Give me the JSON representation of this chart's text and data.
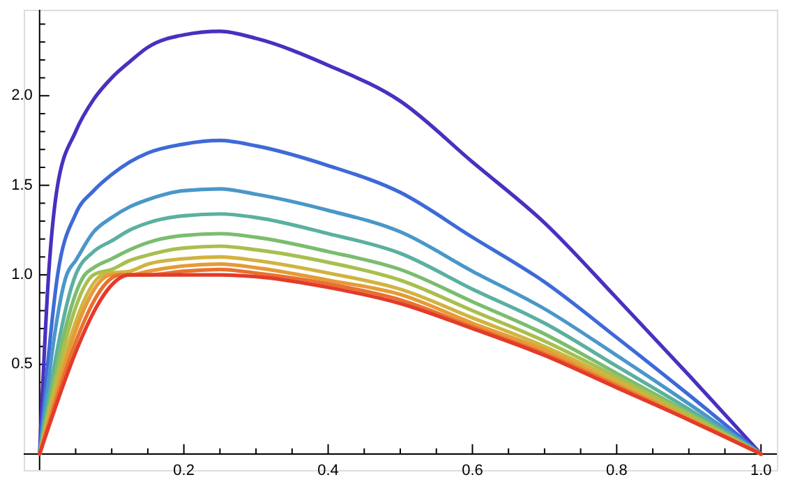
{
  "chart_data": {
    "type": "line",
    "xlim": [
      -0.022,
      1.022
    ],
    "ylim": [
      -0.09,
      2.48
    ],
    "xticks": [
      {
        "value": 0.05,
        "label": null
      },
      {
        "value": 0.1,
        "label": null
      },
      {
        "value": 0.15,
        "label": null
      },
      {
        "value": 0.2,
        "label": "0.2"
      },
      {
        "value": 0.25,
        "label": null
      },
      {
        "value": 0.3,
        "label": null
      },
      {
        "value": 0.35,
        "label": null
      },
      {
        "value": 0.4,
        "label": "0.4"
      },
      {
        "value": 0.45,
        "label": null
      },
      {
        "value": 0.5,
        "label": null
      },
      {
        "value": 0.55,
        "label": null
      },
      {
        "value": 0.6,
        "label": "0.6"
      },
      {
        "value": 0.65,
        "label": null
      },
      {
        "value": 0.7,
        "label": null
      },
      {
        "value": 0.75,
        "label": null
      },
      {
        "value": 0.8,
        "label": "0.8"
      },
      {
        "value": 0.85,
        "label": null
      },
      {
        "value": 0.9,
        "label": null
      },
      {
        "value": 0.95,
        "label": null
      },
      {
        "value": 1,
        "label": "1.0"
      }
    ],
    "yticks": [
      {
        "value": 0.1,
        "label": null
      },
      {
        "value": 0.2,
        "label": null
      },
      {
        "value": 0.3,
        "label": null
      },
      {
        "value": 0.4,
        "label": null
      },
      0.5,
      {
        "value": 0.6,
        "label": null
      },
      {
        "value": 0.7,
        "label": null
      },
      {
        "value": 0.8,
        "label": null
      },
      {
        "value": 0.9,
        "label": null
      },
      {
        "value": 1,
        "label": "1.0"
      },
      {
        "value": 1.1,
        "label": null
      },
      {
        "value": 1.2,
        "label": null
      },
      {
        "value": 1.3,
        "label": null
      },
      {
        "value": 1.4,
        "label": null
      },
      1.5,
      {
        "value": 1.6,
        "label": null
      },
      {
        "value": 1.7,
        "label": null
      },
      {
        "value": 1.8,
        "label": null
      },
      {
        "value": 1.9,
        "label": null
      },
      {
        "value": 2,
        "label": "2.0"
      },
      {
        "value": 2.1,
        "label": null
      },
      {
        "value": 2.2,
        "label": null
      },
      {
        "value": 2.3,
        "label": null
      },
      {
        "value": 2.4,
        "label": null
      }
    ],
    "grid": false,
    "marker": "none",
    "line_style": "solid",
    "series": [
      {
        "color": "#4b2fbf",
        "x": [
          0,
          0.0125,
          0.025,
          0.05,
          0.075,
          0.1,
          0.125,
          0.15,
          0.2,
          0.25,
          0.3,
          0.4,
          0.5,
          0.6,
          0.7,
          0.8,
          0.9,
          1
        ],
        "values": [
          0,
          1.0,
          1.5,
          1.8,
          1.98,
          2.1,
          2.19,
          2.27,
          2.34,
          2.36,
          2.32,
          2.17,
          1.97,
          1.63,
          1.29,
          0.87,
          0.44,
          0
        ]
      },
      {
        "color": "#3e6ad8",
        "x": [
          0,
          0.025,
          0.05,
          0.075,
          0.1,
          0.125,
          0.15,
          0.2,
          0.25,
          0.3,
          0.4,
          0.5,
          0.6,
          0.7,
          0.8,
          0.9,
          1
        ],
        "values": [
          0,
          1.0,
          1.34,
          1.47,
          1.56,
          1.63,
          1.68,
          1.73,
          1.75,
          1.72,
          1.61,
          1.46,
          1.21,
          0.96,
          0.65,
          0.33,
          0
        ]
      },
      {
        "color": "#4a97c9",
        "x": [
          0,
          0.0375,
          0.05,
          0.075,
          0.1,
          0.125,
          0.15,
          0.2,
          0.25,
          0.3,
          0.4,
          0.5,
          0.6,
          0.7,
          0.8,
          0.9,
          1
        ],
        "values": [
          0,
          1.0,
          1.08,
          1.24,
          1.32,
          1.38,
          1.42,
          1.47,
          1.48,
          1.45,
          1.36,
          1.24,
          1.02,
          0.81,
          0.55,
          0.28,
          0
        ]
      },
      {
        "color": "#5bb0a0",
        "x": [
          0,
          0.05,
          0.075,
          0.1,
          0.125,
          0.15,
          0.2,
          0.25,
          0.3,
          0.4,
          0.5,
          0.6,
          0.7,
          0.8,
          0.9,
          1
        ],
        "values": [
          0,
          1.0,
          1.13,
          1.19,
          1.25,
          1.29,
          1.33,
          1.34,
          1.32,
          1.23,
          1.12,
          0.92,
          0.73,
          0.49,
          0.25,
          0
        ]
      },
      {
        "color": "#7bbd6e",
        "x": [
          0,
          0.0625,
          0.075,
          0.1,
          0.125,
          0.15,
          0.2,
          0.25,
          0.3,
          0.4,
          0.5,
          0.6,
          0.7,
          0.8,
          0.9,
          1
        ],
        "values": [
          0,
          1.0,
          1.04,
          1.09,
          1.14,
          1.18,
          1.22,
          1.23,
          1.21,
          1.13,
          1.03,
          0.85,
          0.67,
          0.45,
          0.23,
          0
        ]
      },
      {
        "color": "#a8bf4e",
        "x": [
          0,
          0.075,
          0.1,
          0.125,
          0.15,
          0.2,
          0.25,
          0.3,
          0.4,
          0.5,
          0.6,
          0.7,
          0.8,
          0.9,
          1
        ],
        "values": [
          0,
          1.0,
          1.03,
          1.08,
          1.11,
          1.15,
          1.16,
          1.14,
          1.07,
          0.97,
          0.8,
          0.63,
          0.43,
          0.22,
          0
        ]
      },
      {
        "color": "#d0b440",
        "x": [
          0,
          0.0875,
          0.1,
          0.125,
          0.15,
          0.2,
          0.25,
          0.3,
          0.4,
          0.5,
          0.6,
          0.7,
          0.8,
          0.9,
          1
        ],
        "values": [
          0,
          1.0,
          1.01,
          1.02,
          1.06,
          1.09,
          1.1,
          1.08,
          1.01,
          0.92,
          0.76,
          0.6,
          0.41,
          0.2,
          0
        ]
      },
      {
        "color": "#e69a36",
        "x": [
          0,
          0.1,
          0.125,
          0.15,
          0.2,
          0.25,
          0.3,
          0.4,
          0.5,
          0.6,
          0.7,
          0.8,
          0.9,
          1
        ],
        "values": [
          0,
          1.0,
          1.0,
          1.02,
          1.05,
          1.06,
          1.04,
          0.97,
          0.89,
          0.73,
          0.58,
          0.39,
          0.2,
          0
        ]
      },
      {
        "color": "#e8702f",
        "x": [
          0,
          0.1125,
          0.125,
          0.15,
          0.2,
          0.25,
          0.3,
          0.4,
          0.5,
          0.6,
          0.7,
          0.8,
          0.9,
          1
        ],
        "values": [
          0,
          1.0,
          1.0,
          1.0,
          1.02,
          1.03,
          1.01,
          0.95,
          0.86,
          0.71,
          0.56,
          0.38,
          0.19,
          0
        ]
      },
      {
        "color": "#e33b2a",
        "x": [
          0,
          0.125,
          0.15,
          0.2,
          0.25,
          0.3,
          0.4,
          0.5,
          0.6,
          0.7,
          0.8,
          0.9,
          1
        ],
        "values": [
          0,
          1.0,
          1.0,
          1.0,
          1.0,
          0.99,
          0.93,
          0.84,
          0.7,
          0.55,
          0.37,
          0.19,
          0
        ]
      }
    ]
  }
}
